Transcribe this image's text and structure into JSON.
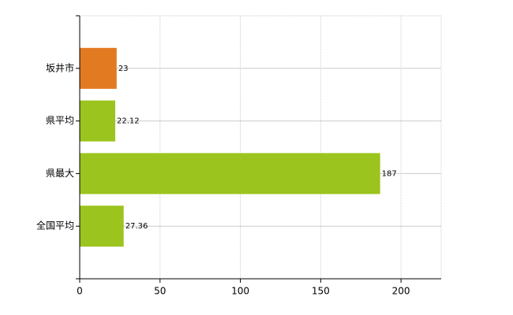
{
  "chart_data": {
    "type": "bar",
    "orientation": "horizontal",
    "categories": [
      "坂井市",
      "県平均",
      "県最大",
      "全国平均"
    ],
    "values": [
      23,
      22.12,
      187,
      27.36
    ],
    "colors": [
      "#e27a22",
      "#9cc41e",
      "#9cc41e",
      "#9cc41e"
    ],
    "xlim": [
      0,
      225
    ],
    "xticks": [
      0,
      50,
      100,
      150,
      200
    ],
    "grid": true
  }
}
